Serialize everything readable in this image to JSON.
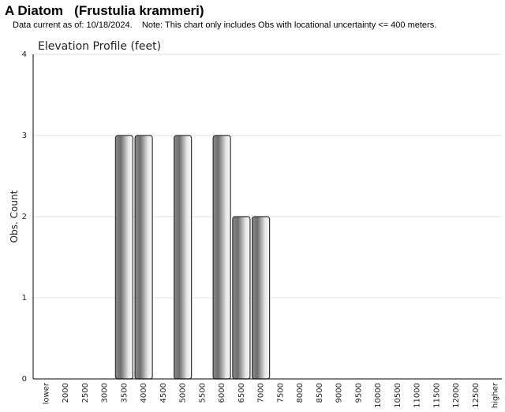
{
  "header": {
    "title": "A Diatom   (Frustulia krammeri)",
    "subtitle": "Data current as of: 10/18/2024.    Note: This chart only includes Obs with locational uncertainty <= 400 meters."
  },
  "chart_data": {
    "type": "bar",
    "title": "Elevation Profile (feet)",
    "xlabel": "",
    "ylabel": "Obs. Count",
    "ylim": [
      0,
      4
    ],
    "yticks": [
      "0",
      "1",
      "2",
      "3",
      "4"
    ],
    "grid": true,
    "categories": [
      "lower",
      "2000",
      "2500",
      "3000",
      "3500",
      "4000",
      "4500",
      "5000",
      "5500",
      "6000",
      "6500",
      "7000",
      "7500",
      "8000",
      "8500",
      "9000",
      "9500",
      "10000",
      "10500",
      "11000",
      "11500",
      "12000",
      "12500",
      "higher"
    ],
    "values": [
      0,
      0,
      0,
      0,
      3,
      3,
      0,
      3,
      0,
      3,
      2,
      2,
      0,
      0,
      0,
      0,
      0,
      0,
      0,
      0,
      0,
      0,
      0,
      0
    ],
    "colors": {
      "bar_light": "#f4f4f4",
      "bar_dark": "#6e6e6e",
      "bar_stroke": "#333333",
      "grid": "#e2e2e2",
      "axis": "#000000"
    }
  }
}
